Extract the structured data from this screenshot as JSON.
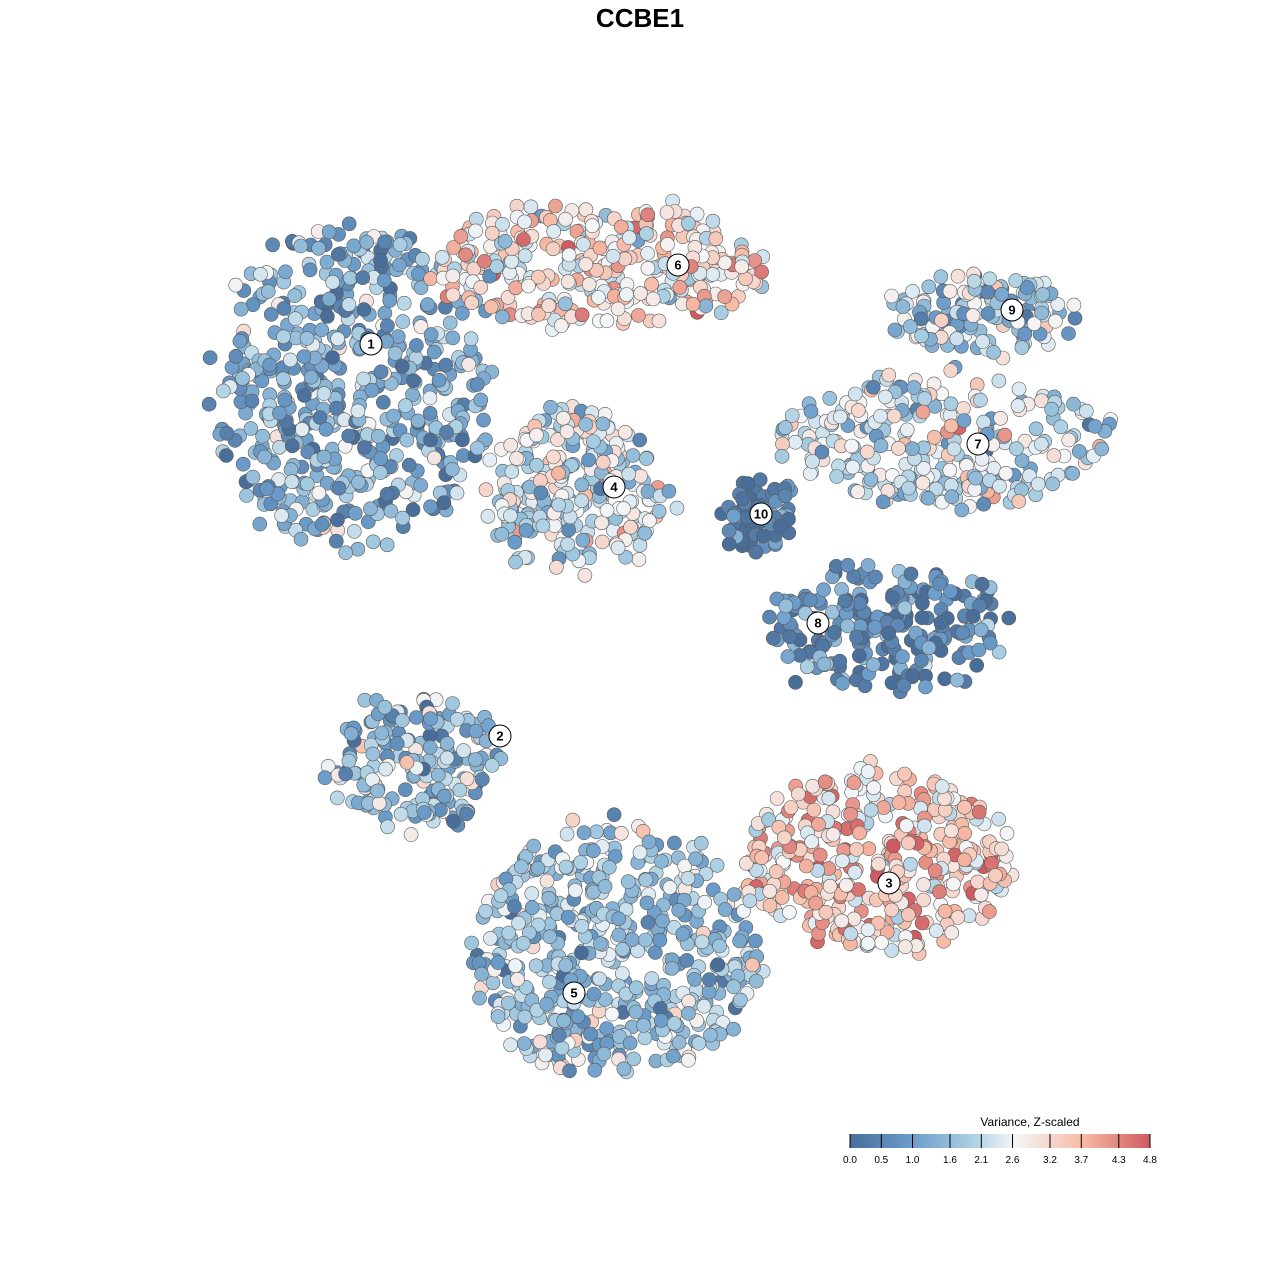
{
  "chart_data": {
    "type": "scatter",
    "title": "CCBE1",
    "xlabel": "",
    "ylabel": "",
    "grid": false,
    "legend_placement": "bottom-right",
    "colorbar": {
      "title": "Variance, Z-scaled",
      "ticks": [
        "0.0",
        "0.5",
        "1.0",
        "1.6",
        "2.1",
        "2.6",
        "3.2",
        "3.7",
        "4.3",
        "4.8"
      ],
      "tick_values": [
        0.0,
        0.5,
        1.0,
        1.6,
        2.1,
        2.6,
        3.2,
        3.7,
        4.3,
        4.8
      ],
      "range": [
        0.0,
        4.8
      ],
      "colors": [
        "#4a6e9a",
        "#6a9bc9",
        "#a7cde2",
        "#f4f6f8",
        "#f6b9a4",
        "#cf5a60"
      ]
    },
    "clusters": [
      {
        "label": "1",
        "mean_value": 1.3
      },
      {
        "label": "2",
        "mean_value": 1.5
      },
      {
        "label": "3",
        "mean_value": 3.4
      },
      {
        "label": "4",
        "mean_value": 2.3
      },
      {
        "label": "5",
        "mean_value": 1.7
      },
      {
        "label": "6",
        "mean_value": 3.0
      },
      {
        "label": "7",
        "mean_value": 2.2
      },
      {
        "label": "8",
        "mean_value": 0.6
      },
      {
        "label": "9",
        "mean_value": 1.8
      },
      {
        "label": "10",
        "mean_value": 0.2
      }
    ]
  }
}
